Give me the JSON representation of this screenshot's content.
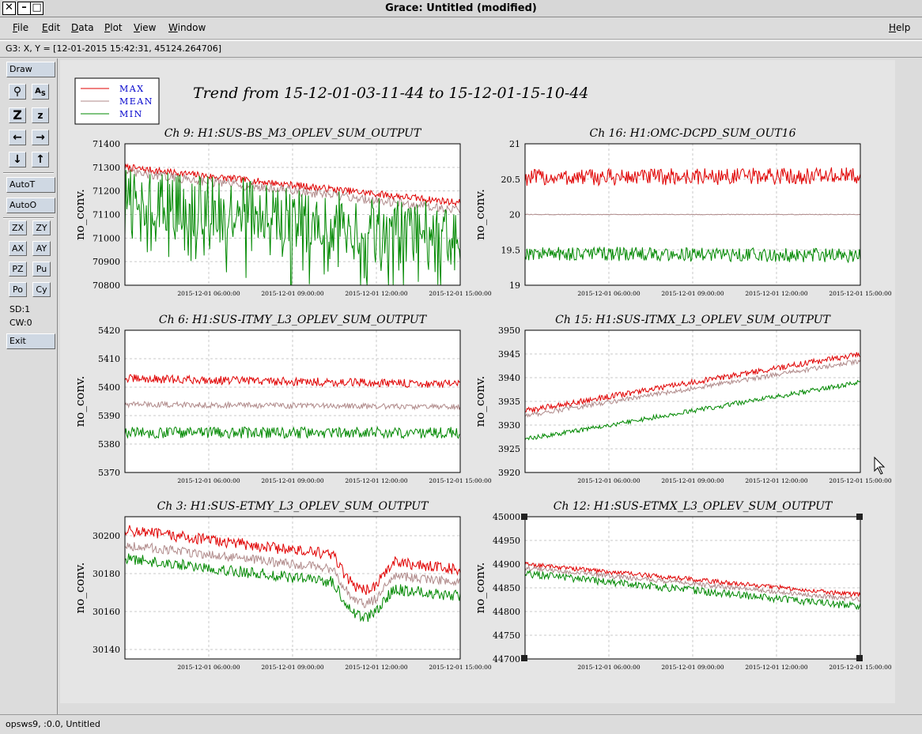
{
  "window": {
    "title": "Grace: Untitled (modified)"
  },
  "menubar": {
    "items": [
      "File",
      "Edit",
      "Data",
      "Plot",
      "View",
      "Window"
    ],
    "help": "Help"
  },
  "locator": {
    "text": "G3: X, Y = [12-01-2015 15:42:31, 45124.264706]"
  },
  "sidebar": {
    "draw": "Draw",
    "autot": "AutoT",
    "autoo": "AutoO",
    "zx": "ZX",
    "zy": "ZY",
    "ax": "AX",
    "ay": "AY",
    "pz": "PZ",
    "pu": "Pu",
    "po": "Po",
    "cy": "Cy",
    "sd": "SD:1",
    "cw": "CW:0",
    "exit": "Exit",
    "icons": [
      "zoom-magnifier-icon",
      "autoscale-text-icon",
      "zoom-in-z-icon",
      "zoom-out-z-icon",
      "arrow-left-icon",
      "arrow-right-icon",
      "arrow-down-icon",
      "arrow-up-icon"
    ]
  },
  "status": {
    "text": "opsws9, :0.0, Untitled"
  },
  "plot": {
    "title": "Trend from 15-12-01-03-11-44 to 15-12-01-15-10-44",
    "legend": [
      "MAX",
      "MEAN",
      "MIN"
    ],
    "x_ticks": [
      "2015-12-01 06:00:00",
      "2015-12-01 09:00:00",
      "2015-12-01 12:00:00",
      "2015-12-01 15:00:00"
    ]
  },
  "colors": {
    "max": "#e00000",
    "mean": "#b08a8a",
    "min": "#008800",
    "legend_text": "#0000cc"
  },
  "chart_data": [
    {
      "type": "line",
      "title": "Ch 9: H1:SUS-BS_M3_OPLEV_SUM_OUTPUT",
      "ylabel": "no_conv.",
      "ylim": [
        70800,
        71400
      ],
      "yticks": [
        "71400",
        "71300",
        "71200",
        "71100",
        "71000",
        "70900",
        "70800"
      ],
      "series": [
        {
          "name": "MAX",
          "start": 71300,
          "end": 71150,
          "noise": 15
        },
        {
          "name": "MEAN",
          "start": 71280,
          "end": 71120,
          "noise": 20
        },
        {
          "name": "MIN",
          "start": 71180,
          "end": 71000,
          "noise": 140
        }
      ]
    },
    {
      "type": "line",
      "title": "Ch 16: H1:OMC-DCPD_SUM_OUT16",
      "ylabel": "no_conv.",
      "ylim": [
        19,
        21
      ],
      "yticks": [
        "21",
        "20.5",
        "20",
        "19.5",
        "19"
      ],
      "series": [
        {
          "name": "MAX",
          "start": 20.52,
          "end": 20.55,
          "noise": 0.12
        },
        {
          "name": "MEAN",
          "start": 20.0,
          "end": 20.0,
          "noise": 0.005
        },
        {
          "name": "MIN",
          "start": 19.45,
          "end": 19.42,
          "noise": 0.1
        }
      ]
    },
    {
      "type": "line",
      "title": "Ch 6: H1:SUS-ITMY_L3_OPLEV_SUM_OUTPUT",
      "ylabel": "no_conv.",
      "ylim": [
        5370,
        5420
      ],
      "yticks": [
        "5420",
        "5410",
        "5400",
        "5390",
        "5380",
        "5370"
      ],
      "series": [
        {
          "name": "MAX",
          "start": 5403,
          "end": 5401,
          "noise": 1.5
        },
        {
          "name": "MEAN",
          "start": 5394,
          "end": 5393,
          "noise": 1.0
        },
        {
          "name": "MIN",
          "start": 5384,
          "end": 5384,
          "noise": 2.0
        }
      ]
    },
    {
      "type": "line",
      "title": "Ch 15: H1:SUS-ITMX_L3_OPLEV_SUM_OUTPUT",
      "ylabel": "no_conv.",
      "ylim": [
        3920,
        3950
      ],
      "yticks": [
        "3950",
        "3945",
        "3940",
        "3935",
        "3930",
        "3925",
        "3920"
      ],
      "series": [
        {
          "name": "MAX",
          "start": 3933,
          "end": 3945,
          "noise": 0.6
        },
        {
          "name": "MEAN",
          "start": 3932,
          "end": 3943.5,
          "noise": 0.5
        },
        {
          "name": "MIN",
          "start": 3927,
          "end": 3939,
          "noise": 0.5
        }
      ]
    },
    {
      "type": "line",
      "title": "Ch 3: H1:SUS-ETMY_L3_OPLEV_SUM_OUTPUT",
      "ylabel": "no_conv.",
      "ylim": [
        30135,
        30210
      ],
      "yticks": [
        "30200",
        "30180",
        "30160",
        "30140"
      ],
      "series": [
        {
          "name": "MAX",
          "start": 30203,
          "end": 30182,
          "noise": 3
        },
        {
          "name": "MEAN",
          "start": 30195,
          "end": 30175,
          "noise": 2.5
        },
        {
          "name": "MIN",
          "start": 30188,
          "end": 30168,
          "noise": 3
        }
      ]
    },
    {
      "type": "line",
      "title": "Ch 12: H1:SUS-ETMX_L3_OPLEV_SUM_OUTPUT",
      "ylabel": "no_conv.",
      "ylim": [
        44700,
        45000
      ],
      "yticks": [
        "45000",
        "44950",
        "44900",
        "44850",
        "44800",
        "44750",
        "44700"
      ],
      "series": [
        {
          "name": "MAX",
          "start": 44900,
          "end": 44835,
          "noise": 5
        },
        {
          "name": "MEAN",
          "start": 44892,
          "end": 44825,
          "noise": 5
        },
        {
          "name": "MIN",
          "start": 44880,
          "end": 44810,
          "noise": 8
        }
      ]
    }
  ]
}
